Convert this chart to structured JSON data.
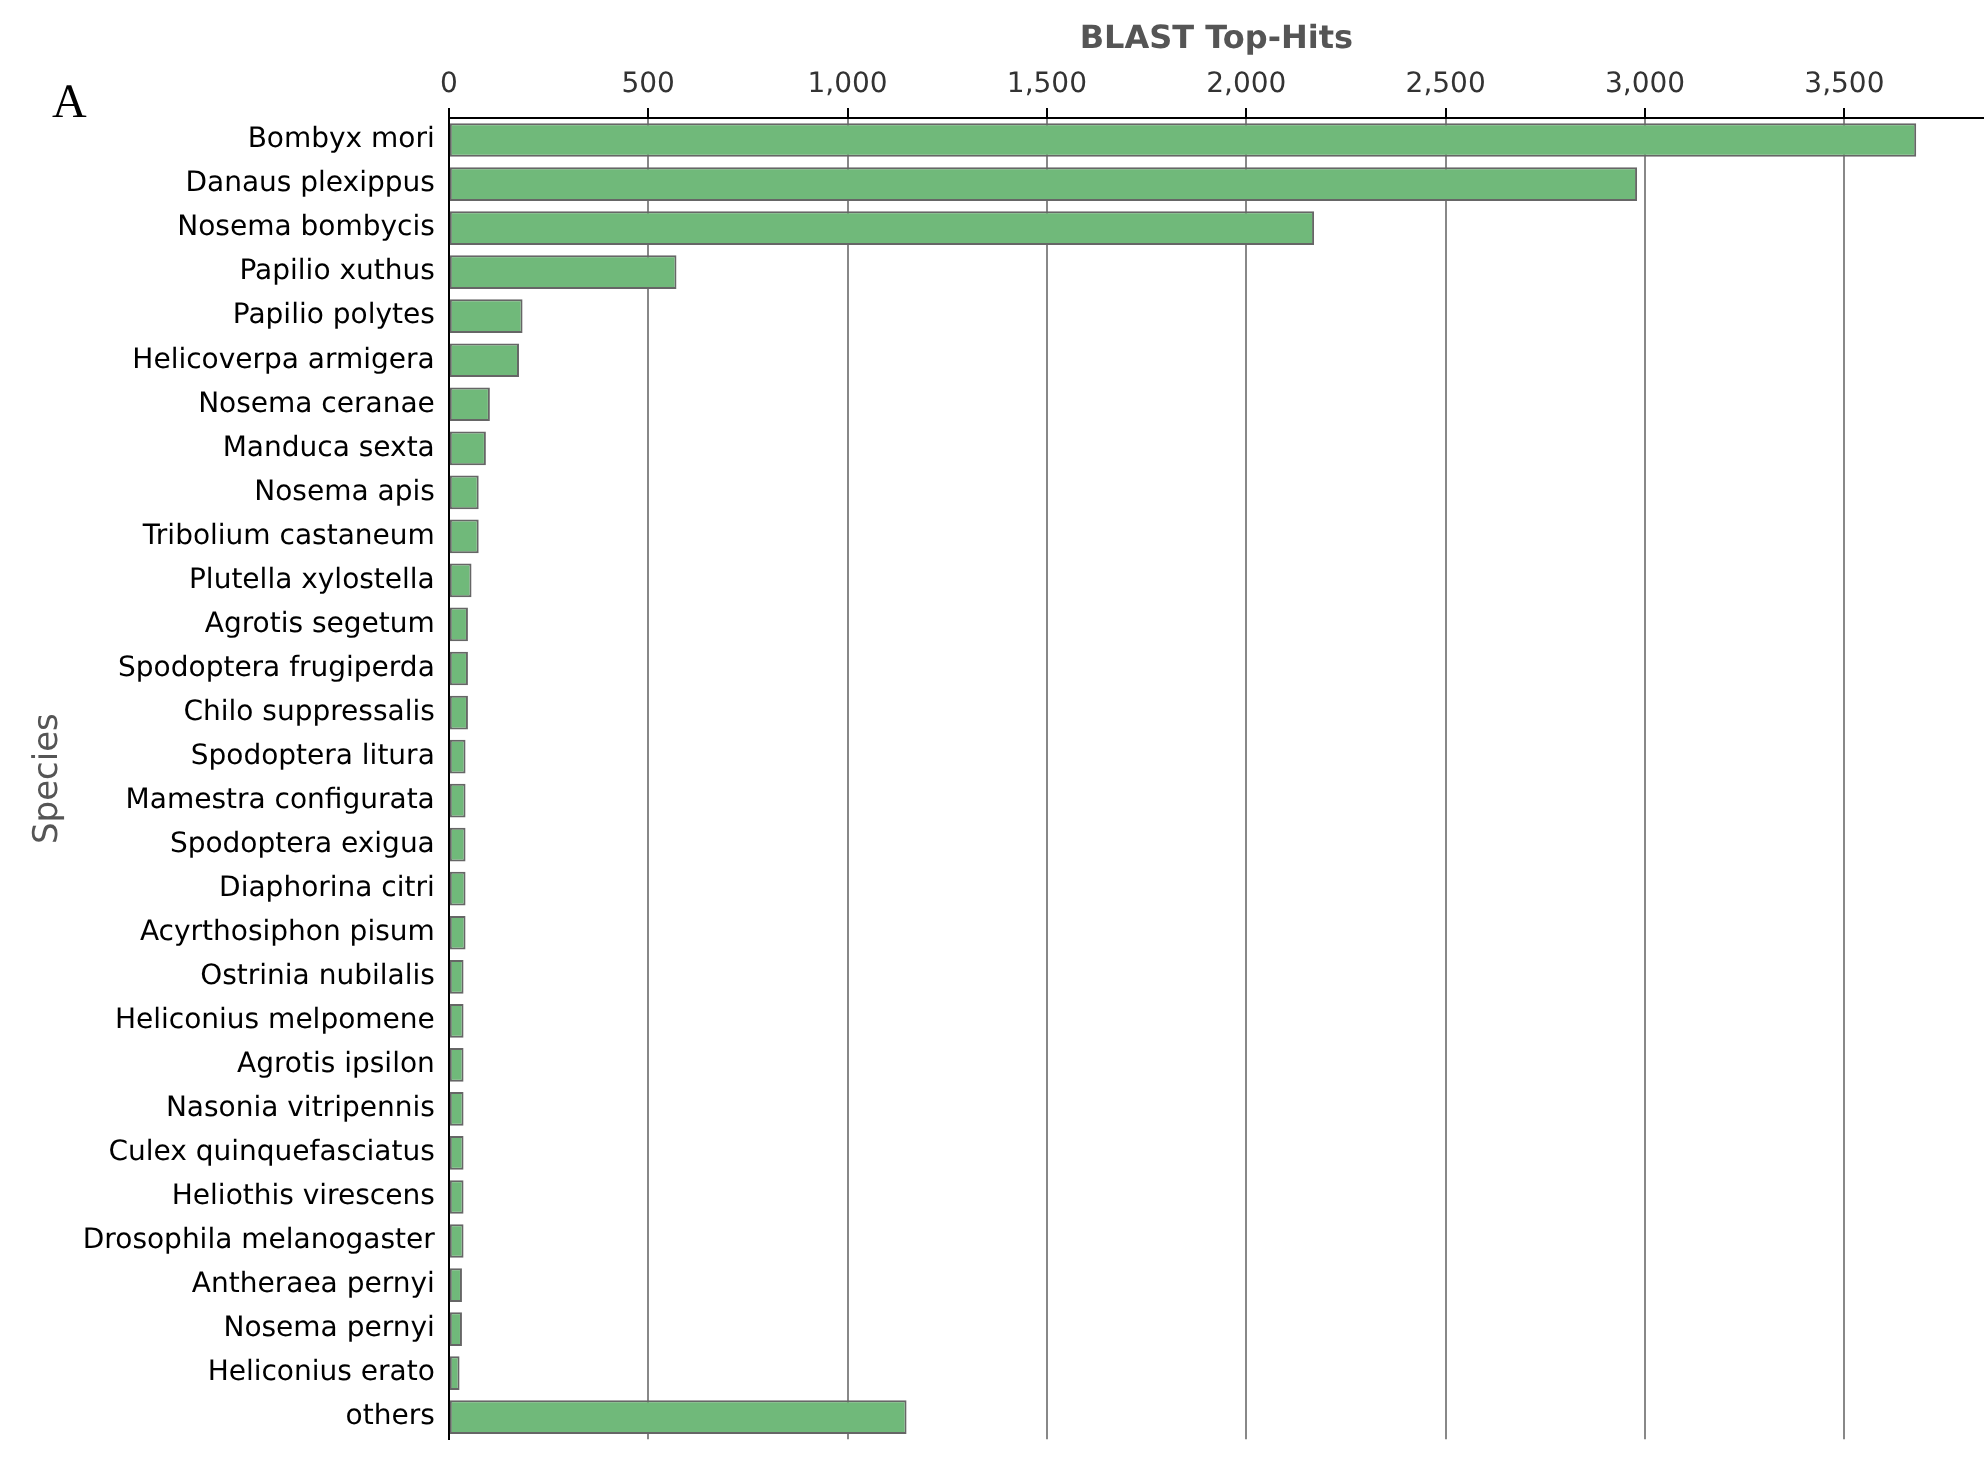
{
  "chart_data": {
    "type": "bar",
    "orientation": "horizontal",
    "xlabel": "BLAST Top-Hits",
    "ylabel": "Species",
    "annotations": [
      "A"
    ],
    "categories": [
      "Bombyx mori",
      "Danaus plexippus",
      "Nosema bombycis",
      "Papilio xuthus",
      "Papilio polytes",
      "Helicoverpa armigera",
      "Nosema ceranae",
      "Manduca sexta",
      "Nosema apis",
      "Tribolium castaneum",
      "Plutella xylostella",
      "Agrotis segetum",
      "Spodoptera frugiperda",
      "Chilo suppressalis",
      "Spodoptera litura",
      "Mamestra configurata",
      "Spodoptera exigua",
      "Diaphorina citri",
      "Acyrthosiphon pisum",
      "Ostrinia nubilalis",
      "Heliconius melpomene",
      "Agrotis ipsilon",
      "Nasonia vitripennis",
      "Culex quinquefasciatus",
      "Heliothis virescens",
      "Drosophila melanogaster",
      "Antheraea pernyi",
      "Nosema pernyi",
      "Heliconius erato",
      "others"
    ],
    "values": [
      3680,
      2980,
      2170,
      571,
      185,
      176,
      103,
      93,
      75,
      75,
      57,
      48,
      48,
      48,
      42,
      42,
      42,
      42,
      42,
      37,
      37,
      37,
      37,
      37,
      37,
      37,
      33,
      33,
      27,
      1148
    ],
    "color": "#70b97a",
    "xlim": [
      0,
      3850
    ],
    "xticks": [
      {
        "value": 0,
        "label": "0"
      },
      {
        "value": 500,
        "label": "500"
      },
      {
        "value": 1000,
        "label": "1,000"
      },
      {
        "value": 1500,
        "label": "1,500"
      },
      {
        "value": 2000,
        "label": "2,000"
      },
      {
        "value": 2500,
        "label": "2,500"
      },
      {
        "value": 3000,
        "label": "3,000"
      },
      {
        "value": 3500,
        "label": "3,500"
      }
    ],
    "grid": "x"
  }
}
